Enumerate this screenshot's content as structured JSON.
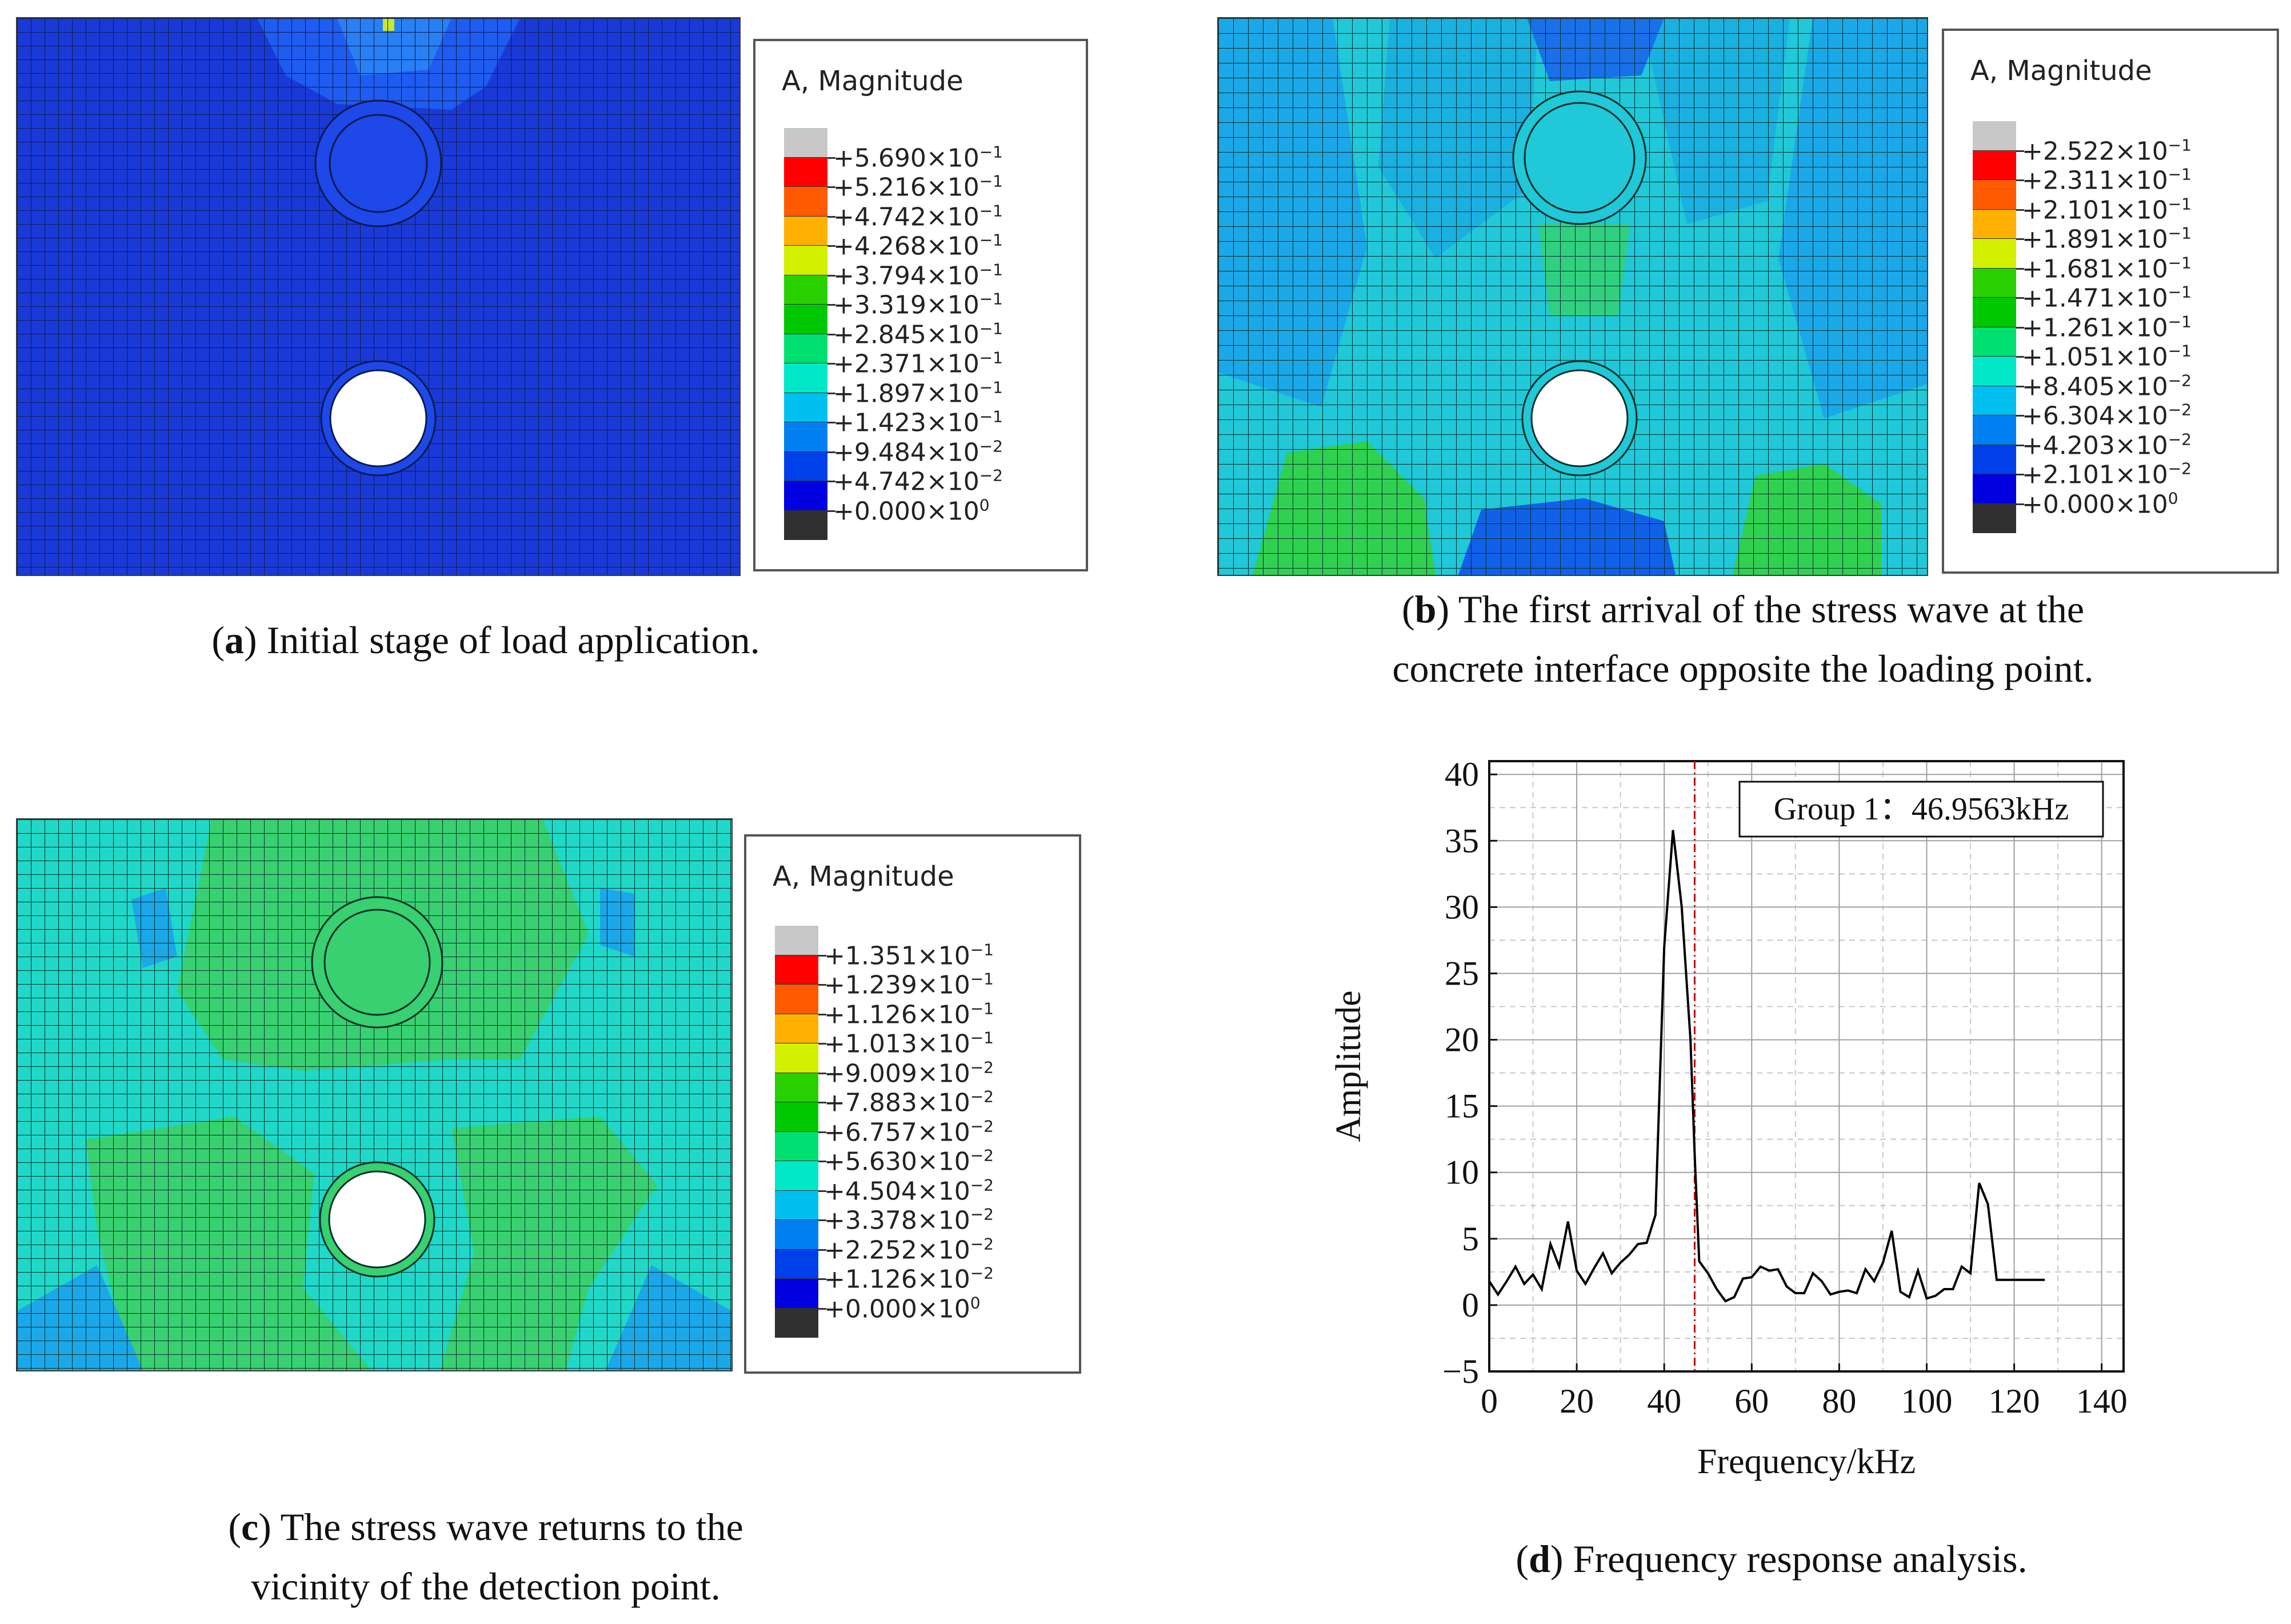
{
  "panels": [
    {
      "id": "a",
      "legend_title": "A, Magnitude",
      "colors": [
        "#c8c8c8",
        "#ff0000",
        "#ff5a00",
        "#ffb000",
        "#d2f000",
        "#28d000",
        "#00c800",
        "#00e070",
        "#00e8c8",
        "#00c0f0",
        "#0080f0",
        "#0040e8",
        "#0000e0",
        "#303030"
      ],
      "labels": [
        "+5.690×10",
        "+5.216×10",
        "+4.742×10",
        "+4.268×10",
        "+3.794×10",
        "+3.319×10",
        "+2.845×10",
        "+2.371×10",
        "+1.897×10",
        "+1.423×10",
        "+9.484×10",
        "+4.742×10",
        "+0.000×10"
      ],
      "exps": [
        "−1",
        "−1",
        "−1",
        "−1",
        "−1",
        "−1",
        "−1",
        "−1",
        "−1",
        "−1",
        "−2",
        "−2",
        "0"
      ],
      "caption_letter": "a",
      "caption_text": ") Initial stage of load application."
    },
    {
      "id": "b",
      "legend_title": "A, Magnitude",
      "colors": [
        "#c8c8c8",
        "#ff0000",
        "#ff5a00",
        "#ffb000",
        "#d2f000",
        "#28d000",
        "#00c800",
        "#00e070",
        "#00e8c8",
        "#00c0f0",
        "#0080f0",
        "#0040e8",
        "#0000e0",
        "#303030"
      ],
      "labels": [
        "+2.522×10",
        "+2.311×10",
        "+2.101×10",
        "+1.891×10",
        "+1.681×10",
        "+1.471×10",
        "+1.261×10",
        "+1.051×10",
        "+8.405×10",
        "+6.304×10",
        "+4.203×10",
        "+2.101×10",
        "+0.000×10"
      ],
      "exps": [
        "−1",
        "−1",
        "−1",
        "−1",
        "−1",
        "−1",
        "−1",
        "−1",
        "−2",
        "−2",
        "−2",
        "−2",
        "0"
      ],
      "caption_letter": "b",
      "caption_text_1": ") The first arrival of the stress wave at the",
      "caption_text_2": "concrete interface opposite the loading point."
    },
    {
      "id": "c",
      "legend_title": "A, Magnitude",
      "colors": [
        "#c8c8c8",
        "#ff0000",
        "#ff5a00",
        "#ffb000",
        "#d2f000",
        "#28d000",
        "#00c800",
        "#00e070",
        "#00e8c8",
        "#00c0f0",
        "#0080f0",
        "#0040e8",
        "#0000e0",
        "#303030"
      ],
      "labels": [
        "+1.351×10",
        "+1.239×10",
        "+1.126×10",
        "+1.013×10",
        "+9.009×10",
        "+7.883×10",
        "+6.757×10",
        "+5.630×10",
        "+4.504×10",
        "+3.378×10",
        "+2.252×10",
        "+1.126×10",
        "+0.000×10"
      ],
      "exps": [
        "−1",
        "−1",
        "−1",
        "−1",
        "−2",
        "−2",
        "−2",
        "−2",
        "−2",
        "−2",
        "−2",
        "−2",
        "0"
      ],
      "caption_letter": "c",
      "caption_text_1": ") The stress wave returns to the",
      "caption_text_2": "vicinity of the detection point."
    }
  ],
  "chart_data": {
    "type": "line",
    "title": "",
    "xlabel": "Frequency/kHz",
    "ylabel": "Amplitude",
    "xlim": [
      0,
      145
    ],
    "ylim": [
      -5,
      41
    ],
    "xticks": [
      0,
      20,
      40,
      60,
      80,
      100,
      120,
      140
    ],
    "yticks": [
      -5,
      0,
      5,
      10,
      15,
      20,
      25,
      30,
      35,
      40
    ],
    "xtick_labels": [
      "0",
      "20",
      "40",
      "60",
      "80",
      "100",
      "120",
      "140"
    ],
    "ytick_labels": [
      "−5",
      "0",
      "5",
      "10",
      "15",
      "20",
      "25",
      "30",
      "35",
      "40"
    ],
    "grid": true,
    "annotation": "Group 1：46.9563kHz",
    "marker_x": 46.9563,
    "series": [
      {
        "name": "Group 1",
        "x": [
          0,
          2,
          4,
          6,
          8,
          10,
          12,
          14,
          16,
          18,
          20,
          22,
          24,
          26,
          28,
          30,
          32,
          34,
          36,
          38,
          40,
          42,
          44,
          46,
          47,
          48,
          50,
          52,
          54,
          56,
          58,
          60,
          62,
          64,
          66,
          68,
          70,
          72,
          74,
          76,
          78,
          80,
          82,
          84,
          86,
          88,
          90,
          92,
          94,
          96,
          98,
          100,
          102,
          104,
          106,
          108,
          110,
          112,
          114,
          116,
          118,
          120,
          122,
          124,
          126,
          127
        ],
        "values": [
          1.8,
          0.8,
          1.8,
          2.9,
          1.6,
          2.3,
          1.2,
          4.6,
          2.9,
          6.3,
          2.6,
          1.6,
          2.8,
          3.9,
          2.4,
          3.2,
          3.8,
          4.6,
          4.7,
          6.8,
          27,
          35.8,
          30,
          20,
          11,
          3.3,
          2.4,
          1.2,
          0.3,
          0.6,
          2,
          2.1,
          2.9,
          2.6,
          2.7,
          1.4,
          0.9,
          0.9,
          2.4,
          1.8,
          0.8,
          1,
          1.1,
          0.9,
          2.7,
          1.8,
          3.2,
          5.6,
          1,
          0.6,
          2.6,
          0.5,
          0.7,
          1.2,
          1.2,
          2.9,
          2.4,
          9.2,
          7.6,
          1.9,
          1.9,
          1.9,
          1.9,
          1.9,
          1.9,
          1.9
        ]
      }
    ],
    "caption_letter": "d",
    "caption_text": ") Frequency response analysis."
  }
}
